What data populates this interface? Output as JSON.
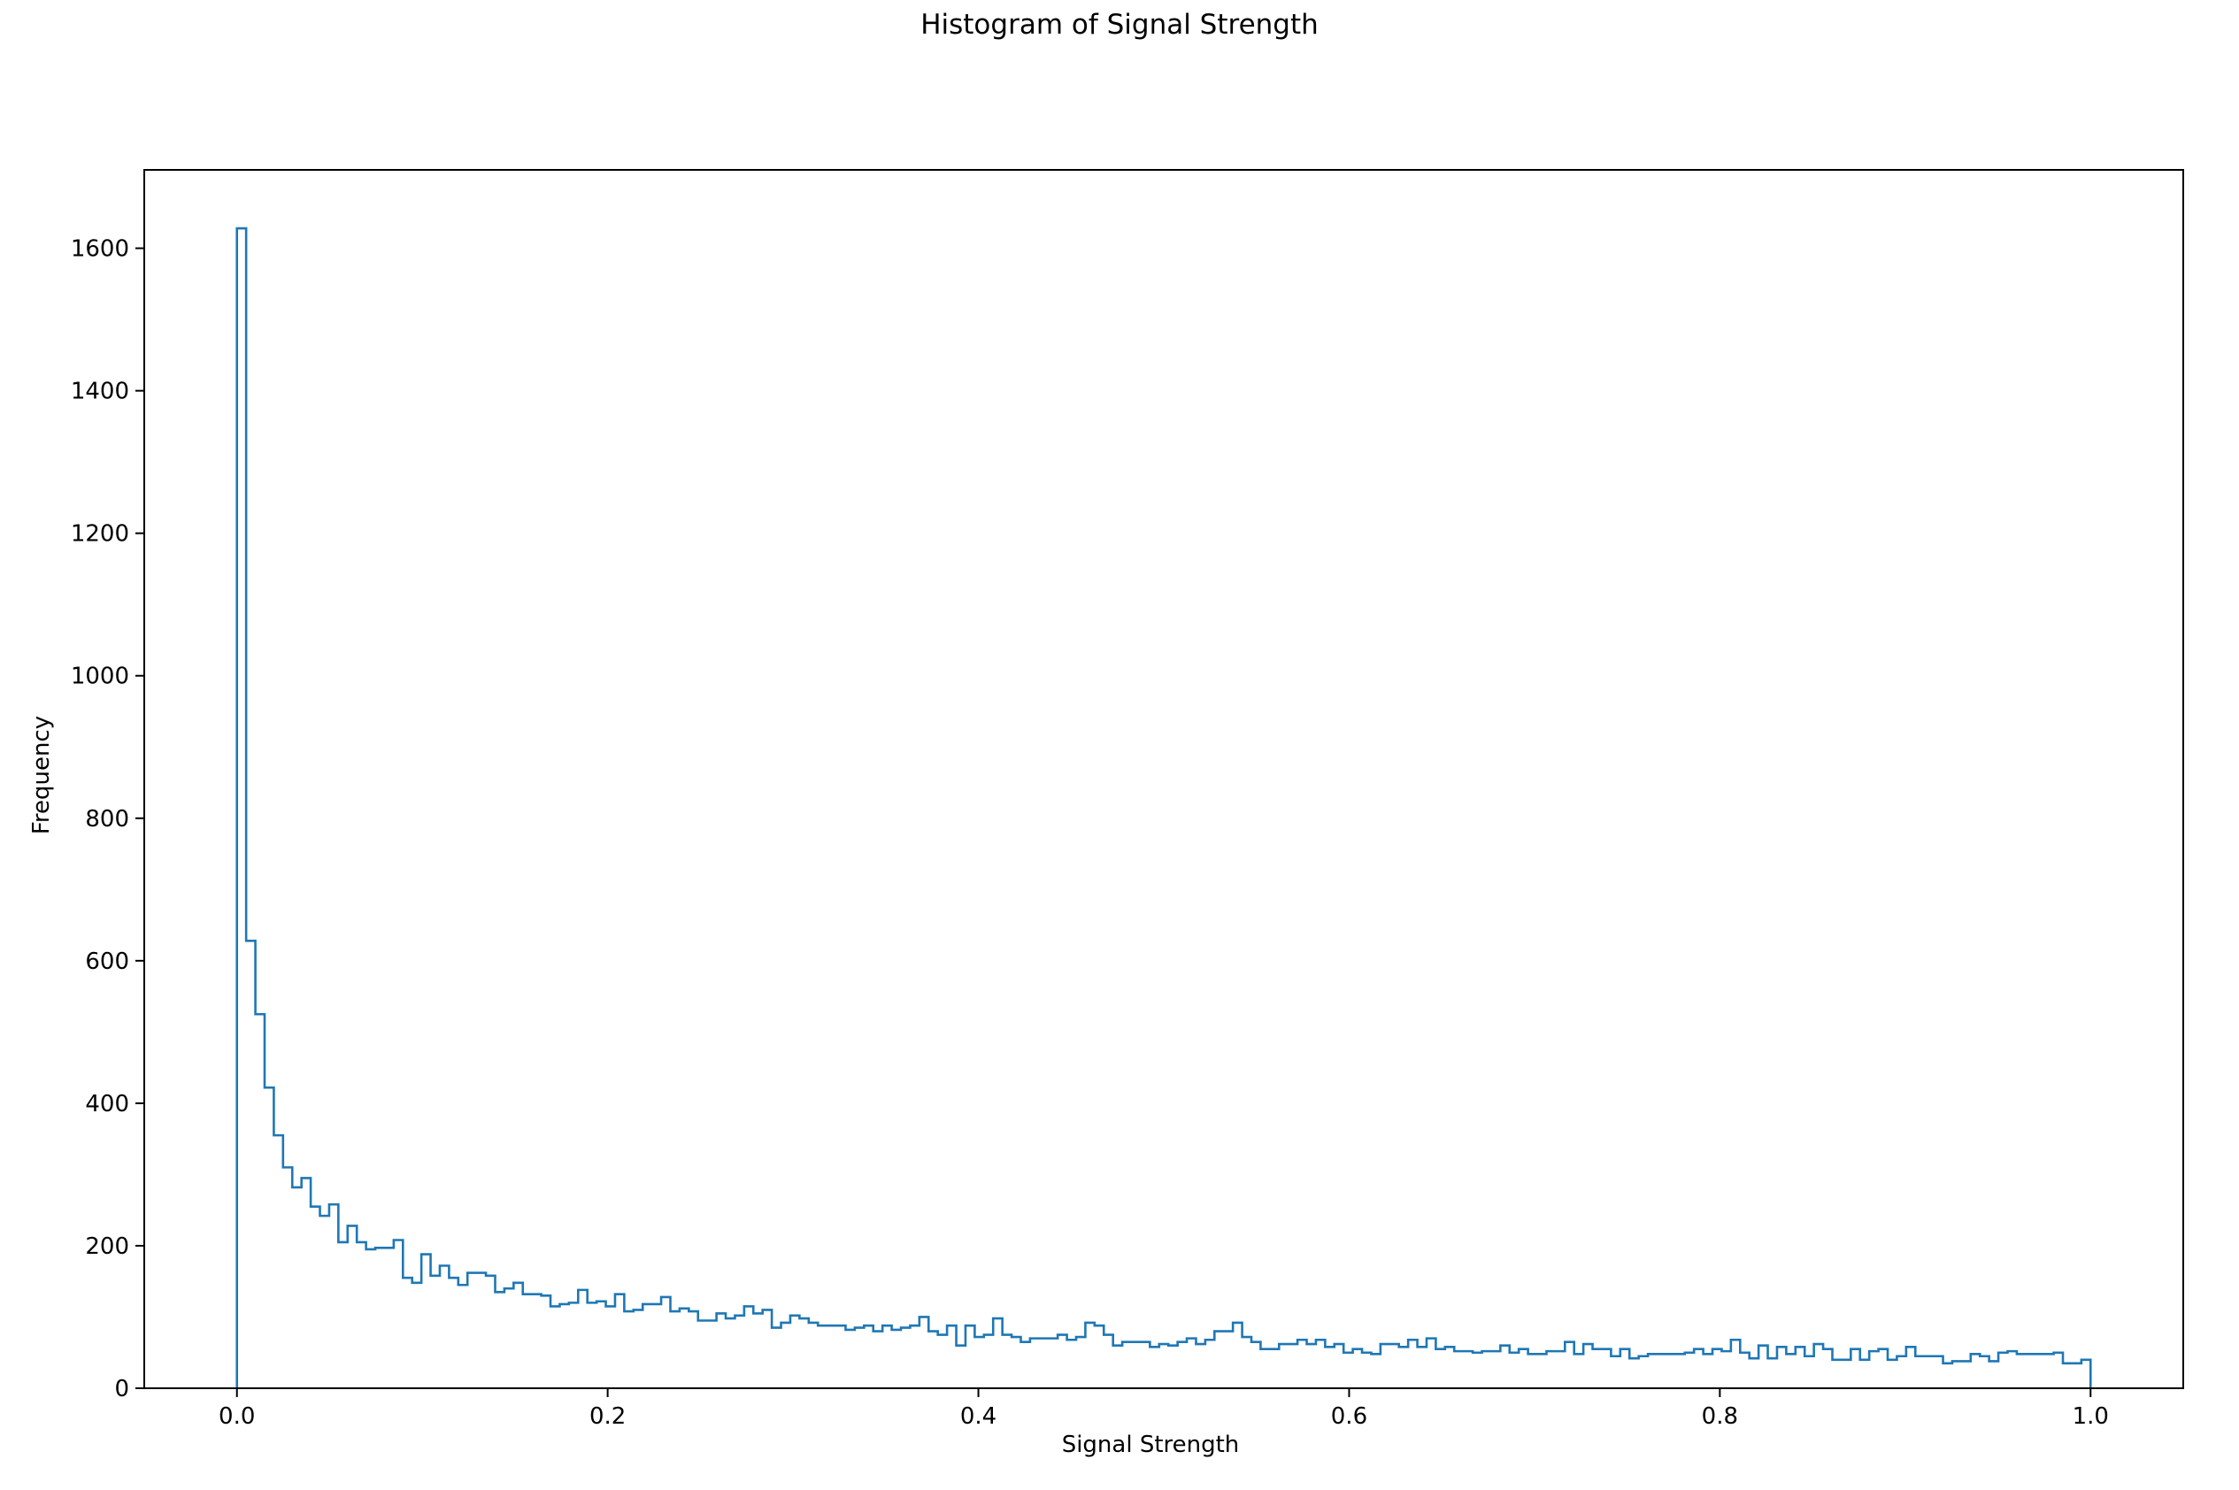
{
  "chart_data": {
    "type": "histogram",
    "title": "Histogram of Signal Strength",
    "xlabel": "Signal Strength",
    "ylabel": "Frequency",
    "xlim": [
      -0.05,
      1.05
    ],
    "ylim": [
      0,
      1710
    ],
    "x_ticks": [
      0.0,
      0.2,
      0.4,
      0.6,
      0.8,
      1.0
    ],
    "x_tick_labels": [
      "0.0",
      "0.2",
      "0.4",
      "0.6",
      "0.8",
      "1.0"
    ],
    "y_ticks": [
      0,
      200,
      400,
      600,
      800,
      1000,
      1200,
      1400,
      1600
    ],
    "y_tick_labels": [
      "0",
      "200",
      "400",
      "600",
      "800",
      "1000",
      "1200",
      "1400",
      "1600"
    ],
    "bin_range": [
      0.0,
      1.0
    ],
    "histtype": "step",
    "grid": false,
    "line_color": "#1f77b4",
    "counts": [
      1628,
      628,
      525,
      422,
      355,
      310,
      282,
      295,
      255,
      242,
      258,
      205,
      228,
      205,
      195,
      197,
      197,
      208,
      155,
      148,
      188,
      158,
      172,
      155,
      145,
      162,
      162,
      158,
      135,
      140,
      148,
      132,
      132,
      130,
      115,
      118,
      120,
      138,
      120,
      122,
      115,
      132,
      108,
      110,
      118,
      118,
      128,
      108,
      112,
      108,
      95,
      95,
      105,
      98,
      102,
      115,
      105,
      110,
      85,
      92,
      102,
      98,
      92,
      88,
      88,
      88,
      82,
      85,
      88,
      80,
      88,
      82,
      85,
      88,
      100,
      80,
      75,
      88,
      60,
      88,
      72,
      75,
      98,
      75,
      72,
      65,
      70,
      70,
      70,
      75,
      68,
      72,
      92,
      88,
      75,
      60,
      65,
      65,
      65,
      58,
      62,
      60,
      65,
      70,
      62,
      68,
      80,
      80,
      92,
      72,
      65,
      55,
      55,
      62,
      62,
      68,
      62,
      68,
      58,
      62,
      50,
      55,
      50,
      48,
      62,
      62,
      58,
      68,
      58,
      70,
      55,
      58,
      52,
      52,
      50,
      52,
      52,
      60,
      50,
      55,
      48,
      48,
      52,
      52,
      65,
      48,
      62,
      55,
      55,
      45,
      55,
      42,
      45,
      48,
      48,
      48,
      48,
      50,
      55,
      48,
      55,
      52,
      68,
      50,
      42,
      60,
      42,
      58,
      48,
      58,
      45,
      62,
      55,
      40,
      40,
      55,
      40,
      52,
      55,
      40,
      45,
      58,
      45,
      45,
      45,
      35,
      38,
      38,
      48,
      45,
      38,
      50,
      52,
      48,
      48,
      48,
      48,
      50,
      35,
      35,
      40
    ]
  }
}
